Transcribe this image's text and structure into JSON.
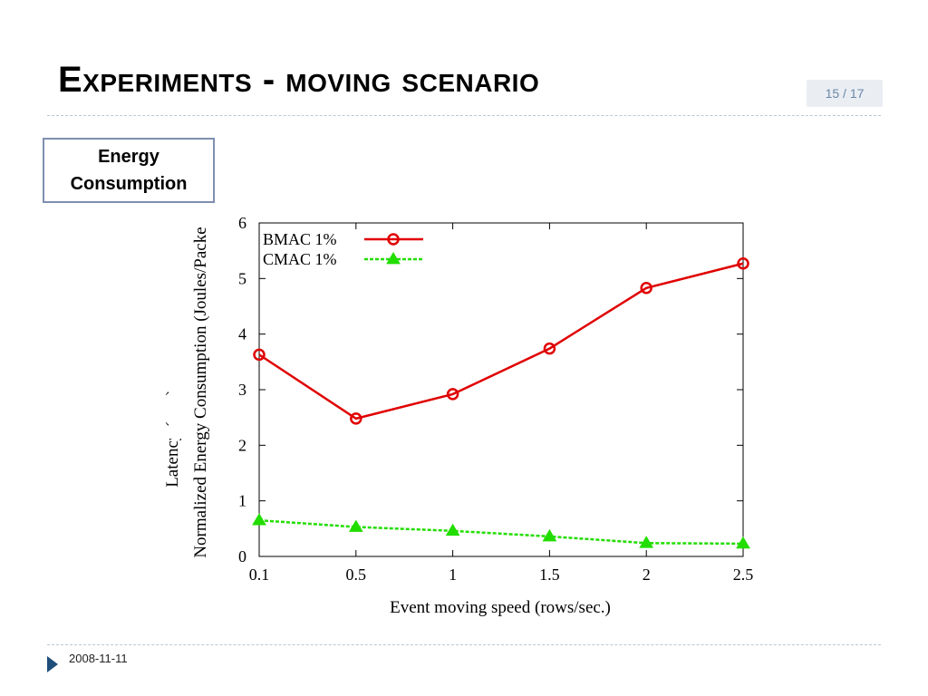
{
  "slide": {
    "title": "Experiments - moving scenario",
    "page_counter": "15 / 17",
    "energy_label": "Energy Consumption",
    "footer_date": "2008-11-11"
  },
  "chart_data": {
    "type": "line",
    "title": "",
    "xlabel": "Event moving speed (rows/sec.)",
    "ylabel": "Normalized Energy Consumption (Joules/Packe",
    "ylabel_behind": "Latency (sec.)",
    "categories": [
      "0.1",
      "0.5",
      "1",
      "1.5",
      "2",
      "2.5"
    ],
    "yticks": [
      "0",
      "1",
      "2",
      "3",
      "4",
      "5",
      "6"
    ],
    "ylim": [
      0,
      6
    ],
    "grid": false,
    "legend_position": "top-left",
    "series": [
      {
        "name": "BMAC 1%",
        "color": "#e00000",
        "marker": "circle",
        "line": "solid",
        "values": [
          3.63,
          2.48,
          2.92,
          3.74,
          4.83,
          5.27
        ]
      },
      {
        "name": "CMAC 1%",
        "color": "#22dd00",
        "marker": "triangle",
        "line": "dashed",
        "values": [
          0.65,
          0.53,
          0.46,
          0.36,
          0.24,
          0.23
        ]
      }
    ]
  }
}
